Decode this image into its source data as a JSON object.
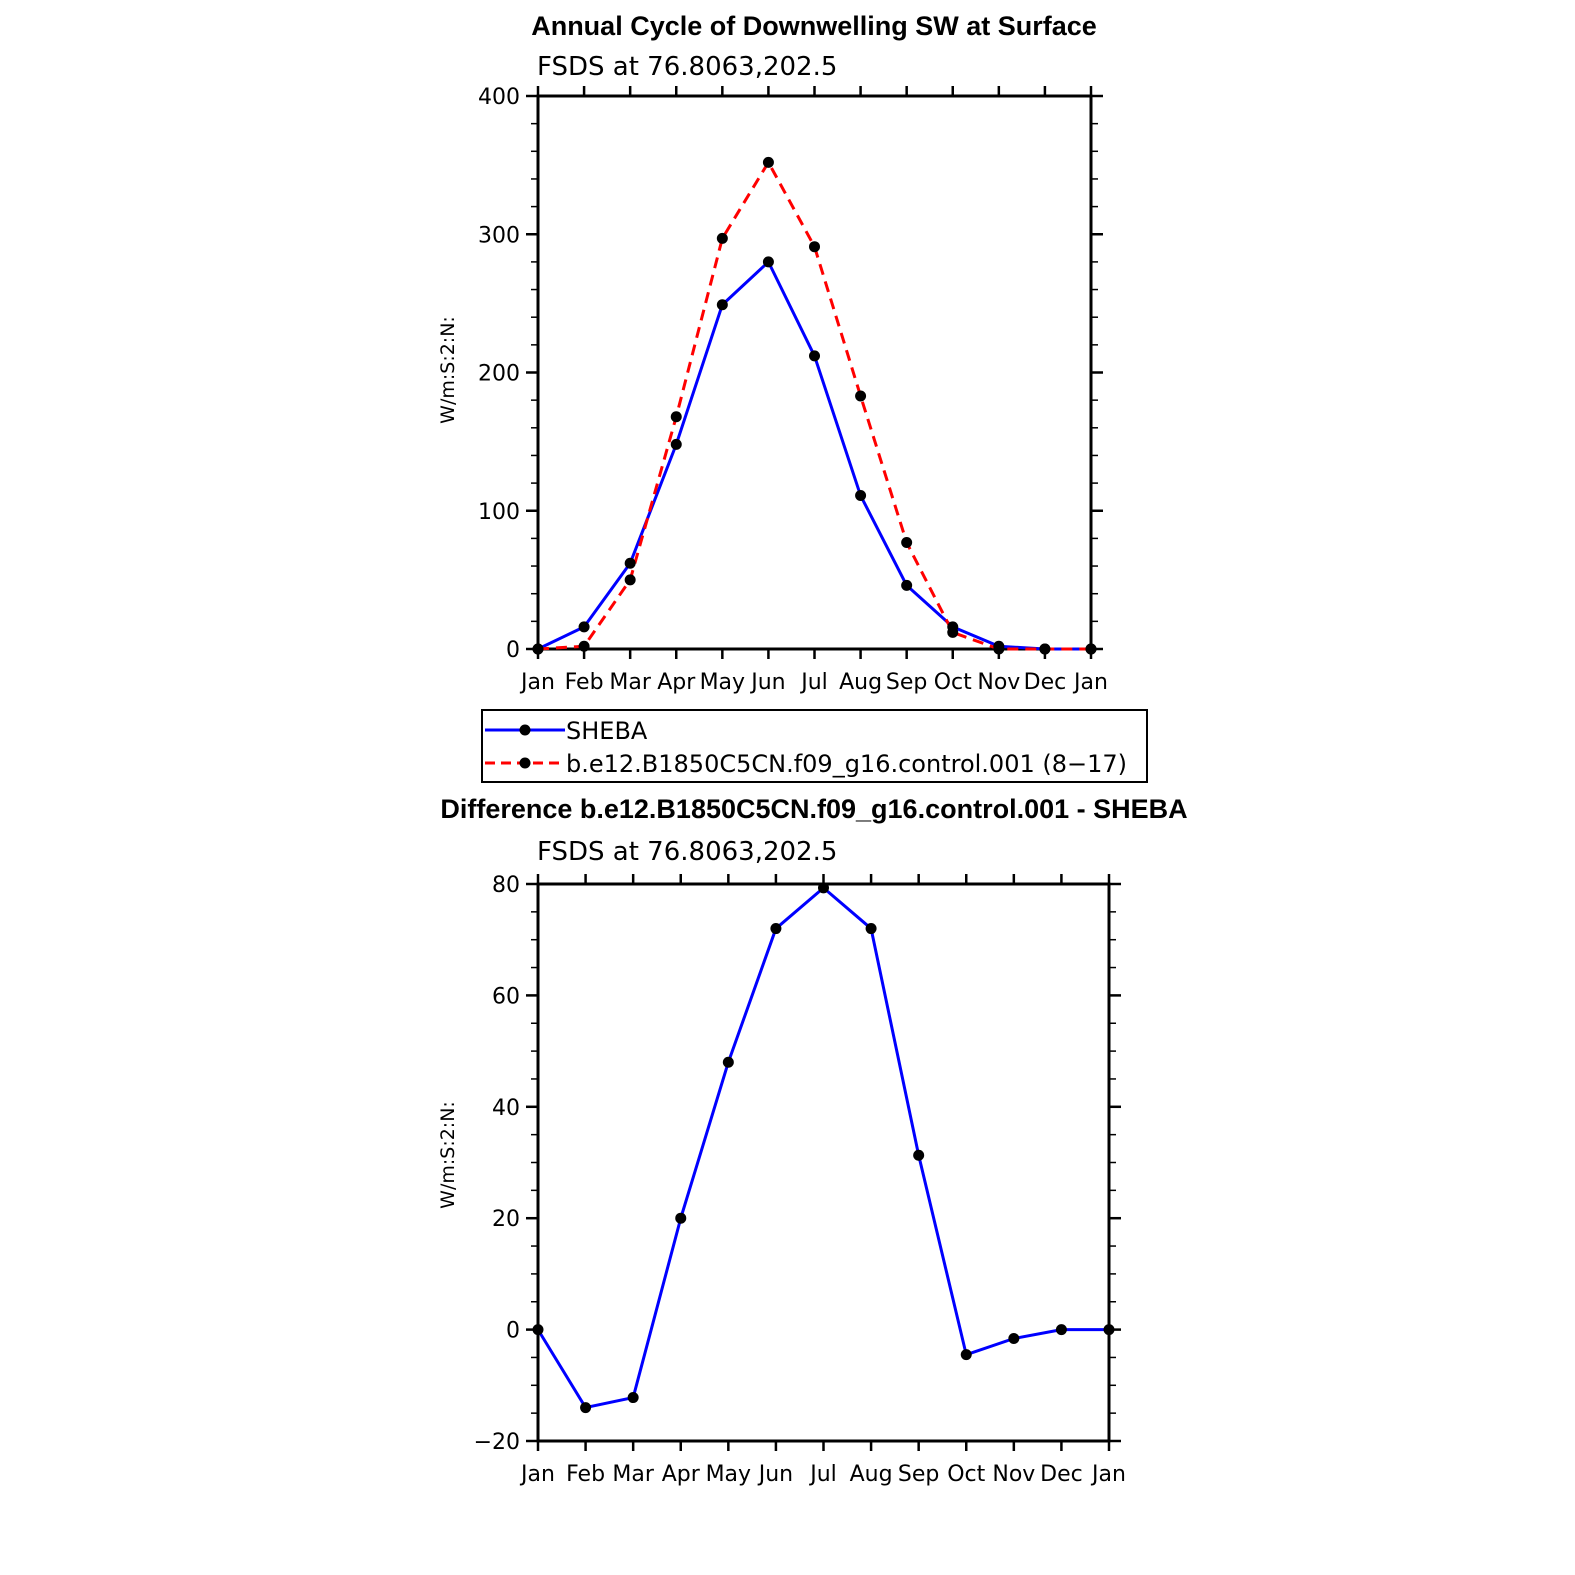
{
  "chart_data": [
    {
      "type": "line",
      "title": "Annual Cycle of Downwelling SW at Surface",
      "subtitle": "FSDS at 76.8063,202.5",
      "ylabel": "W/m:S:2:N:",
      "xlabel": "",
      "categories": [
        "Jan",
        "Feb",
        "Mar",
        "Apr",
        "May",
        "Jun",
        "Jul",
        "Aug",
        "Sep",
        "Oct",
        "Nov",
        "Dec",
        "Jan"
      ],
      "ylim": [
        0,
        400
      ],
      "yticks": [
        0,
        100,
        200,
        300,
        400
      ],
      "grid": false,
      "legend_position": "bottom",
      "series": [
        {
          "name": "SHEBA",
          "color": "#0000ff",
          "style": "solid",
          "values": [
            0,
            16,
            62,
            148,
            249,
            280,
            212,
            111,
            46,
            16,
            2,
            0,
            0
          ]
        },
        {
          "name": "b.e12.B1850C5CN.f09_g16.control.001 (8−17)",
          "color": "#ff0000",
          "style": "dashed",
          "values": [
            0,
            2,
            50,
            168,
            297,
            352,
            291,
            183,
            77,
            12,
            0,
            0,
            0
          ]
        }
      ]
    },
    {
      "type": "line",
      "title": "Difference b.e12.B1850C5CN.f09_g16.control.001 - SHEBA",
      "subtitle": "FSDS at 76.8063,202.5",
      "ylabel": "W/m:S:2:N:",
      "xlabel": "",
      "categories": [
        "Jan",
        "Feb",
        "Mar",
        "Apr",
        "May",
        "Jun",
        "Jul",
        "Aug",
        "Sep",
        "Oct",
        "Nov",
        "Dec",
        "Jan"
      ],
      "ylim": [
        -20,
        80
      ],
      "yticks": [
        -20,
        0,
        20,
        40,
        60,
        80
      ],
      "ytick_labels": [
        "−20",
        "0",
        "20",
        "40",
        "60",
        "80"
      ],
      "grid": false,
      "series": [
        {
          "color": "#0000ff",
          "style": "solid",
          "values": [
            0,
            -14,
            -12.2,
            20,
            48,
            72,
            79.3,
            72,
            31.3,
            -4.5,
            -1.6,
            0,
            0
          ]
        }
      ]
    }
  ]
}
